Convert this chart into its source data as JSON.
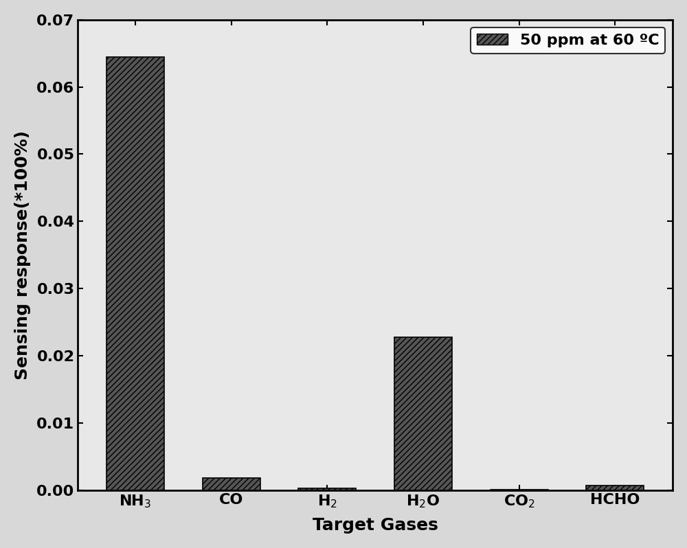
{
  "categories": [
    "NH$_3$",
    "CO",
    "H$_2$",
    "H$_2$O",
    "CO$_2$",
    "HCHO"
  ],
  "values": [
    0.0645,
    0.0018,
    0.00028,
    0.0228,
    4e-05,
    0.00065
  ],
  "bar_color": "#555555",
  "hatch": "////",
  "ylabel": "Sensing response(*100%)",
  "xlabel": "Target Gases",
  "legend_label": "50 ppm at 60 ºC",
  "ylim": [
    0,
    0.07
  ],
  "yticks": [
    0.0,
    0.01,
    0.02,
    0.03,
    0.04,
    0.05,
    0.06,
    0.07
  ],
  "background_color": "#d8d8d8",
  "plot_bg_color": "#e8e8e8",
  "label_fontsize": 18,
  "tick_fontsize": 16,
  "legend_fontsize": 16,
  "bar_width": 0.6
}
